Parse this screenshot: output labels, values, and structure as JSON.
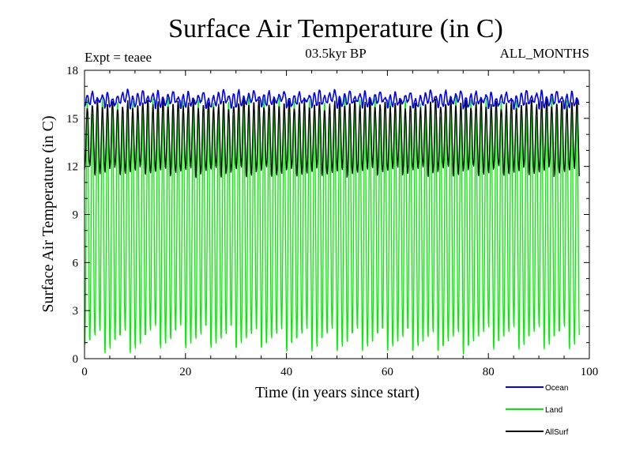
{
  "chart_data": {
    "type": "line",
    "title": "Surface Air Temperature (in C)",
    "subtitle_left": "Expt = teaee",
    "subtitle_center": "03.5kyr BP",
    "subtitle_right": "ALL_MONTHS",
    "xlabel": "Time (in years since start)",
    "ylabel": "Surface Air Temperature (in C)",
    "xlim": [
      0,
      100
    ],
    "ylim": [
      0,
      18
    ],
    "x_ticks": [
      "0",
      "20",
      "40",
      "60",
      "80",
      "100"
    ],
    "y_ticks": [
      "0",
      "3",
      "6",
      "9",
      "12",
      "15",
      "18"
    ],
    "x_tick_values": [
      0,
      20,
      40,
      60,
      80,
      100
    ],
    "y_tick_values": [
      0,
      3,
      6,
      9,
      12,
      15,
      18
    ],
    "x_minor_step": 5,
    "y_minor_step": 1,
    "grid": false,
    "legend_position": "bottom-right outside",
    "series": [
      {
        "name": "Land",
        "color": "#00ee00",
        "description": "monthly seasonal cycle",
        "years": 98,
        "cycle_period_years": 1,
        "max_range": [
          15.3,
          16.5
        ],
        "min_range": [
          0.2,
          1.9
        ],
        "seasonal_max": 16.0,
        "seasonal_min": 1.1
      },
      {
        "name": "AllSurf",
        "color": "#000000",
        "description": "monthly seasonal cycle",
        "years": 98,
        "cycle_period_years": 1,
        "max_range": [
          15.6,
          16.3
        ],
        "min_range": [
          11.3,
          12.0
        ],
        "seasonal_max": 15.9,
        "seasonal_min": 11.6
      },
      {
        "name": "Ocean",
        "color": "#0000ee",
        "description": "monthly seasonal cycle, small amplitude",
        "years": 98,
        "cycle_period_years": 1,
        "max_range": [
          16.2,
          16.8
        ],
        "min_range": [
          15.6,
          16.1
        ],
        "seasonal_max": 16.4,
        "seasonal_min": 15.9
      }
    ],
    "legend": [
      {
        "name": "Ocean",
        "color": "#0000ee"
      },
      {
        "name": "Land",
        "color": "#00ee00"
      },
      {
        "name": "AllSurf",
        "color": "#000000"
      }
    ]
  }
}
